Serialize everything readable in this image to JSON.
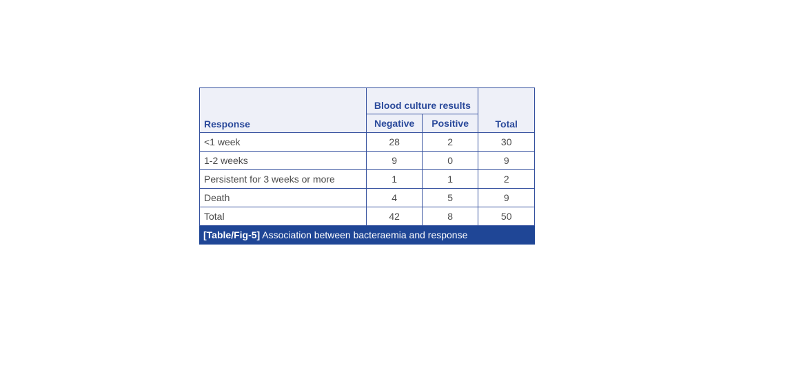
{
  "table": {
    "header": {
      "response": "Response",
      "group": "Blood culture results",
      "negative": "Negative",
      "positive": "Positive",
      "total": "Total"
    },
    "rows": [
      {
        "response": "<1 week",
        "negative": "28",
        "positive": "2",
        "total": "30"
      },
      {
        "response": "1-2 weeks",
        "negative": "9",
        "positive": "0",
        "total": "9"
      },
      {
        "response": "Persistent for 3 weeks or more",
        "negative": "1",
        "positive": "1",
        "total": "2"
      },
      {
        "response": "Death",
        "negative": "4",
        "positive": "5",
        "total": "9"
      },
      {
        "response": "Total",
        "negative": "42",
        "positive": "8",
        "total": "50"
      }
    ],
    "caption": {
      "label": "[Table/Fig-5]",
      "text": " Association between bacteraemia and response"
    }
  },
  "colors": {
    "border": "#34509e",
    "header_bg": "#eef0f8",
    "header_text": "#2b4a9b",
    "caption_bg": "#1f4696"
  }
}
